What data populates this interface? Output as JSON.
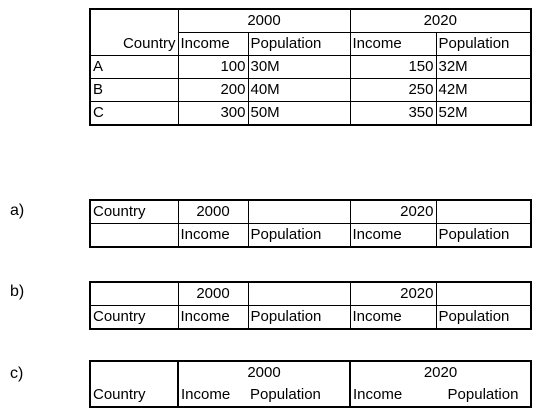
{
  "main_table": {
    "years": [
      "2000",
      "2020"
    ],
    "headers": [
      "Country",
      "Income",
      "Population",
      "Income",
      "Population"
    ],
    "rows": [
      [
        "A",
        "100",
        "30M",
        "150",
        "32M"
      ],
      [
        "B",
        "200",
        "40M",
        "250",
        "42M"
      ],
      [
        "C",
        "300",
        "50M",
        "350",
        "52M"
      ]
    ]
  },
  "option_a": {
    "label": "a)",
    "row1": [
      "Country",
      "2000",
      "",
      "2020",
      ""
    ],
    "row2": [
      "",
      "Income",
      "Population",
      "Income",
      "Population"
    ]
  },
  "option_b": {
    "label": "b)",
    "row1": [
      "",
      "2000",
      "",
      "2020",
      ""
    ],
    "row2": [
      "Country",
      "Income",
      "Population",
      "Income",
      "Population"
    ]
  },
  "option_c": {
    "label": "c)",
    "years": [
      "2000",
      "2020"
    ],
    "row2": [
      "Country",
      "Income",
      "Population",
      "Income",
      "Population"
    ]
  }
}
